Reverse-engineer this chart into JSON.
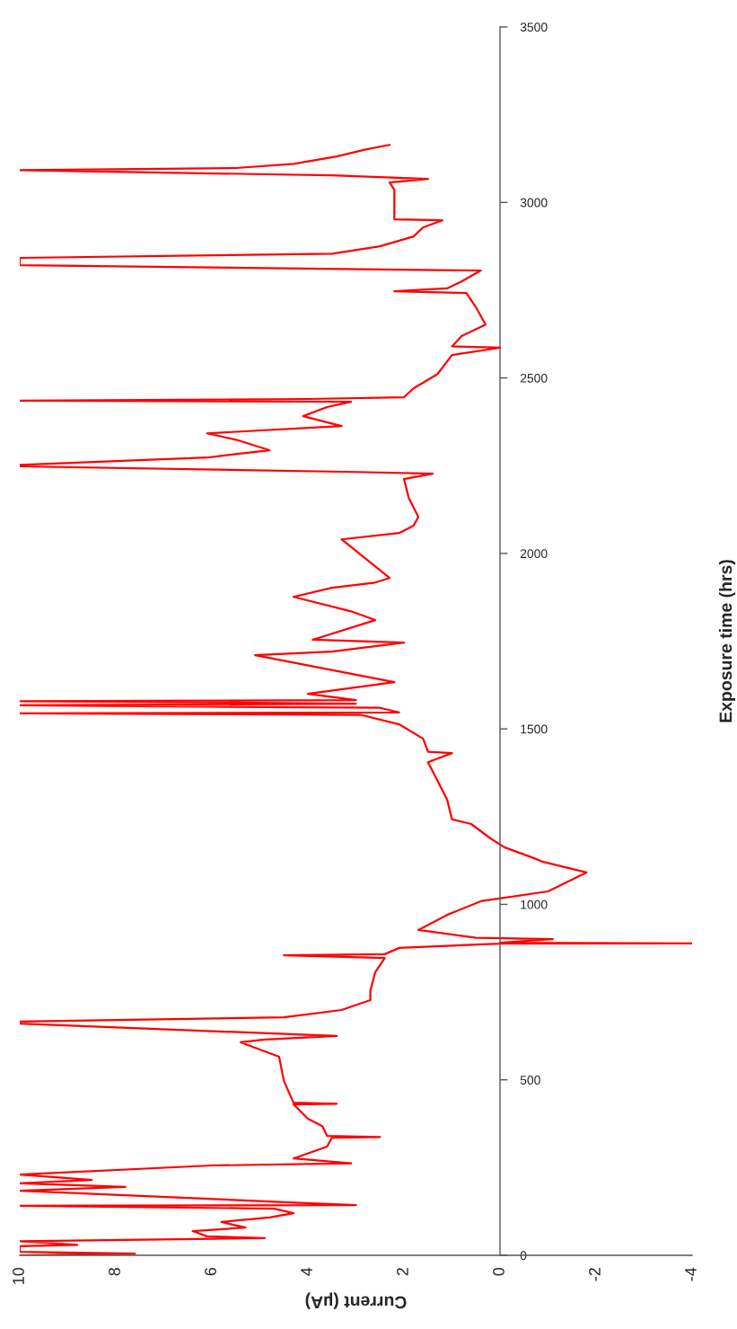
{
  "chart_data": {
    "type": "line",
    "xlabel": "Current (µA)",
    "ylabel": "Exposure time (hrs)",
    "ylim": [
      0,
      3500
    ],
    "yticks": [
      0,
      500,
      1000,
      1500,
      2000,
      2500,
      3000,
      3500
    ],
    "xlim": [
      10,
      -4
    ],
    "xticks": [
      10,
      8,
      6,
      4,
      2,
      0,
      -2,
      -4
    ],
    "series": [
      {
        "color": "#ff0000",
        "values": [
          0,
          5,
          10,
          26,
          30,
          40,
          49,
          54,
          69,
          79,
          95,
          108,
          120,
          133,
          141,
          143,
          151,
          184,
          195,
          205,
          215,
          230,
          256,
          262,
          276,
          310,
          335,
          337,
          340,
          368,
          389,
          430,
          432,
          435,
          497,
          566,
          607,
          615,
          625,
          660,
          666,
          678,
          699,
          727,
          753,
          806,
          847,
          855,
          858,
          876,
          888,
          889,
          891,
          901,
          905,
          927,
          970,
          1009,
          1037,
          1091,
          1121,
          1132,
          1162,
          1188,
          1229,
          1242,
          1298,
          1352,
          1405,
          1431,
          1435,
          1472,
          1513,
          1540,
          1544,
          1547,
          1560,
          1567,
          1572,
          1579,
          1582,
          1600,
          1633,
          1710,
          1720,
          1746,
          1754,
          1810,
          1835,
          1876,
          1902,
          1917,
          1930,
          2040,
          2058,
          2079,
          2104,
          2158,
          2212,
          2227,
          2232,
          2248,
          2252,
          2273,
          2294,
          2324,
          2342,
          2363,
          2391,
          2417,
          2432,
          2435,
          2440,
          2445,
          2470,
          2511,
          2565,
          2586,
          2590,
          2619,
          2652,
          2701,
          2742,
          2747,
          2755,
          2775,
          2806,
          2821,
          2842,
          2854,
          2875,
          2903,
          2929,
          2949,
          2952,
          2982,
          3036,
          3057,
          3067,
          3077,
          3092,
          3098,
          3110,
          3131,
          3151,
          3164
        ],
        "x": [
          10,
          7.6,
          10,
          10,
          8.8,
          10,
          4.9,
          6.1,
          6.4,
          5.3,
          5.8,
          4.8,
          4.3,
          4.7,
          10,
          3.0,
          4.4,
          10,
          7.8,
          10,
          8.5,
          10,
          6.0,
          3.1,
          4.3,
          3.6,
          3.5,
          2.5,
          3.6,
          3.7,
          4.0,
          4.3,
          3.4,
          4.3,
          4.5,
          4.6,
          5.4,
          4.9,
          3.4,
          10,
          10,
          4.5,
          3.3,
          2.7,
          2.7,
          2.6,
          2.4,
          4.5,
          2.4,
          2.1,
          0,
          -4,
          0,
          -1.1,
          0.5,
          1.7,
          1.1,
          0.4,
          -1.0,
          -1.8,
          -0.9,
          -0.7,
          -0.1,
          0.2,
          0.6,
          1.0,
          1.1,
          1.3,
          1.5,
          1.0,
          1.5,
          1.6,
          2.1,
          2.9,
          10,
          2.1,
          2.5,
          10,
          3.0,
          10,
          3.0,
          4.0,
          2.2,
          5.1,
          3.5,
          2.0,
          3.9,
          2.6,
          3.1,
          4.3,
          3.5,
          2.6,
          2.3,
          3.3,
          2.1,
          1.8,
          1.7,
          1.9,
          2.0,
          1.4,
          3.0,
          10,
          10,
          6.1,
          4.8,
          5.5,
          6.1,
          3.3,
          4.1,
          3.6,
          3.1,
          10,
          4.0,
          2.0,
          1.8,
          1.3,
          1.0,
          0.0,
          1.0,
          0.8,
          0.3,
          0.5,
          0.7,
          2.2,
          1.1,
          0.8,
          0.4,
          10,
          10,
          3.5,
          2.5,
          1.8,
          1.6,
          1.2,
          2.2,
          2.2,
          2.2,
          2.3,
          1.5,
          3.5,
          10,
          5.5,
          4.3,
          3.4,
          2.8,
          2.3
        ]
      }
    ]
  }
}
